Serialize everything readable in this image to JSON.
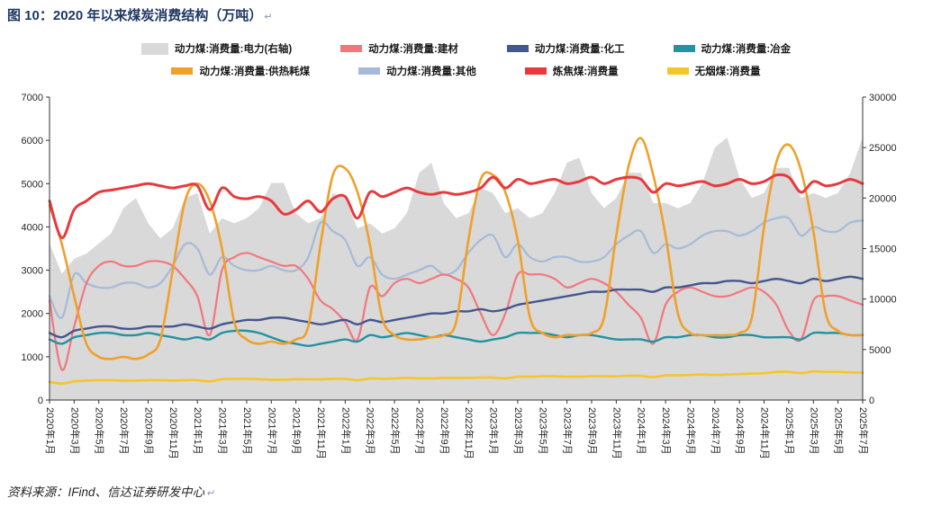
{
  "page": {
    "title": "图 10：2020 年以来煤炭消费结构（万吨）",
    "title_return_mark": "↵",
    "source_note": "资料来源：IFind、信达证券研发中心",
    "source_return_mark": "↵"
  },
  "chart_data": {
    "type": "line",
    "title": "图 10：2020 年以来煤炭消费结构（万吨）",
    "xlabel": "",
    "ylabel": "",
    "grid": false,
    "legend_position": "top",
    "n_points": 67,
    "x_label_every": 2,
    "x_tick_labels": [
      "2020年1月",
      "2020年3月",
      "2020年5月",
      "2020年7月",
      "2020年9月",
      "2020年11月",
      "2021年1月",
      "2021年3月",
      "2021年5月",
      "2021年7月",
      "2021年9月",
      "2021年11月",
      "2022年1月",
      "2022年3月",
      "2022年5月",
      "2022年7月",
      "2022年9月",
      "2022年11月",
      "2023年1月",
      "2023年3月",
      "2023年5月",
      "2023年7月",
      "2023年9月",
      "2023年11月",
      "2024年1月",
      "2024年3月",
      "2024年5月",
      "2024年7月",
      "2024年9月",
      "2024年11月",
      "2025年1月",
      "2025年3月",
      "2025年5月",
      "2025年7月"
    ],
    "axes": {
      "left": {
        "min": 0,
        "max": 7000,
        "ticks": [
          0,
          1000,
          2000,
          3000,
          4000,
          5000,
          6000,
          7000
        ]
      },
      "right": {
        "min": 0,
        "max": 30000,
        "ticks": [
          0,
          5000,
          10000,
          15000,
          20000,
          25000,
          30000
        ]
      }
    },
    "legend_rows": [
      [
        0,
        2,
        3,
        4
      ],
      [
        6,
        1,
        7,
        5
      ]
    ],
    "series": [
      {
        "key": "power",
        "name": "动力煤:消费量:电力(右轴)",
        "axis": "right",
        "type": "area",
        "color": "#d9d9d9",
        "width": 0,
        "values": [
          15500,
          12500,
          14000,
          14500,
          15500,
          16500,
          19000,
          20000,
          17500,
          16000,
          17000,
          20000,
          20500,
          16500,
          18000,
          17500,
          18000,
          19000,
          21500,
          21500,
          18500,
          17500,
          18000,
          20500,
          20000,
          17000,
          17500,
          16500,
          17000,
          18500,
          22500,
          23500,
          19500,
          18000,
          18500,
          21000,
          20500,
          18500,
          19000,
          18000,
          18500,
          20500,
          23500,
          24000,
          20500,
          19000,
          20000,
          22500,
          22500,
          19500,
          19500,
          19000,
          19500,
          21500,
          25000,
          26000,
          22000,
          20000,
          20500,
          23000,
          23000,
          20000,
          20500,
          20000,
          20500,
          22500,
          26000
        ]
      },
      {
        "key": "other",
        "name": "动力煤:消费量:其他",
        "axis": "left",
        "type": "line",
        "color": "#a6bad8",
        "width": 2.2,
        "values": [
          2400,
          1900,
          2900,
          2700,
          2600,
          2600,
          2700,
          2700,
          2600,
          2700,
          3100,
          3600,
          3500,
          2900,
          3300,
          3100,
          3000,
          3000,
          3100,
          3000,
          3000,
          3300,
          4100,
          3900,
          3700,
          3100,
          3300,
          2900,
          2800,
          2900,
          3000,
          3100,
          2900,
          3000,
          3400,
          3700,
          3800,
          3300,
          3600,
          3300,
          3200,
          3300,
          3300,
          3200,
          3200,
          3300,
          3600,
          3800,
          3900,
          3400,
          3600,
          3500,
          3600,
          3800,
          3900,
          3900,
          3800,
          3900,
          4100,
          4200,
          4200,
          3800,
          4000,
          3900,
          3900,
          4100,
          4150
        ]
      },
      {
        "key": "building-materials",
        "name": "动力煤:消费量:建材",
        "axis": "left",
        "type": "line",
        "color": "#f2777d",
        "width": 2.2,
        "values": [
          2300,
          700,
          1700,
          2700,
          3100,
          3200,
          3100,
          3100,
          3200,
          3200,
          3100,
          2800,
          2400,
          1500,
          3000,
          3300,
          3400,
          3300,
          3200,
          3100,
          3100,
          2800,
          2300,
          2100,
          1800,
          1400,
          2600,
          2400,
          2700,
          2800,
          2700,
          2800,
          2900,
          2800,
          2600,
          2000,
          1500,
          2000,
          2900,
          2900,
          2900,
          2800,
          2600,
          2700,
          2800,
          2700,
          2500,
          2200,
          1900,
          1300,
          2200,
          2500,
          2600,
          2500,
          2400,
          2400,
          2500,
          2600,
          2500,
          2200,
          1600,
          1400,
          2300,
          2400,
          2400,
          2300,
          2200
        ]
      },
      {
        "key": "chemical",
        "name": "动力煤:消费量:化工",
        "axis": "left",
        "type": "line",
        "color": "#44568e",
        "width": 2.4,
        "values": [
          1550,
          1450,
          1600,
          1650,
          1700,
          1700,
          1650,
          1650,
          1700,
          1700,
          1700,
          1750,
          1700,
          1650,
          1750,
          1800,
          1850,
          1850,
          1900,
          1900,
          1850,
          1800,
          1750,
          1800,
          1850,
          1750,
          1850,
          1800,
          1850,
          1900,
          1950,
          2000,
          2000,
          2050,
          2050,
          2100,
          2050,
          2100,
          2200,
          2250,
          2300,
          2350,
          2400,
          2450,
          2500,
          2500,
          2550,
          2550,
          2550,
          2500,
          2600,
          2600,
          2650,
          2700,
          2700,
          2750,
          2750,
          2700,
          2750,
          2800,
          2750,
          2700,
          2800,
          2750,
          2800,
          2850,
          2800
        ]
      },
      {
        "key": "metallurgy",
        "name": "动力煤:消费量:冶金",
        "axis": "left",
        "type": "line",
        "color": "#2492a0",
        "width": 2.4,
        "values": [
          1400,
          1300,
          1450,
          1500,
          1550,
          1550,
          1500,
          1500,
          1550,
          1500,
          1450,
          1400,
          1450,
          1400,
          1550,
          1600,
          1600,
          1550,
          1450,
          1350,
          1300,
          1250,
          1300,
          1350,
          1400,
          1350,
          1500,
          1450,
          1500,
          1550,
          1500,
          1450,
          1500,
          1450,
          1400,
          1350,
          1400,
          1450,
          1550,
          1550,
          1550,
          1500,
          1450,
          1500,
          1500,
          1450,
          1400,
          1400,
          1400,
          1350,
          1450,
          1450,
          1500,
          1500,
          1450,
          1450,
          1500,
          1500,
          1450,
          1450,
          1450,
          1400,
          1550,
          1550,
          1550,
          1500,
          1500
        ]
      },
      {
        "key": "anthracite",
        "name": "无烟煤:消费量",
        "axis": "left",
        "type": "line",
        "color": "#f6c52a",
        "width": 2.6,
        "values": [
          420,
          380,
          430,
          450,
          460,
          460,
          450,
          450,
          460,
          460,
          450,
          460,
          460,
          430,
          480,
          490,
          490,
          480,
          470,
          470,
          480,
          480,
          480,
          490,
          490,
          460,
          500,
          490,
          500,
          510,
          500,
          500,
          510,
          510,
          510,
          520,
          520,
          500,
          540,
          540,
          550,
          550,
          540,
          540,
          550,
          550,
          550,
          560,
          560,
          530,
          570,
          570,
          580,
          590,
          580,
          590,
          600,
          610,
          620,
          650,
          650,
          620,
          660,
          650,
          650,
          640,
          630
        ]
      },
      {
        "key": "heating",
        "name": "动力煤:消费量:供热耗煤",
        "axis": "left",
        "type": "line",
        "color": "#f0a02a",
        "width": 2.6,
        "values": [
          4500,
          3600,
          2400,
          1300,
          1000,
          950,
          1000,
          950,
          1050,
          1400,
          3000,
          4600,
          5000,
          4600,
          3500,
          1800,
          1400,
          1300,
          1350,
          1300,
          1400,
          1700,
          3600,
          5200,
          5350,
          4800,
          3600,
          1900,
          1500,
          1400,
          1400,
          1450,
          1500,
          1800,
          3700,
          5100,
          5200,
          4800,
          3700,
          1900,
          1550,
          1450,
          1500,
          1500,
          1550,
          1900,
          3800,
          5400,
          6050,
          5200,
          3800,
          2000,
          1550,
          1500,
          1500,
          1500,
          1550,
          1900,
          4000,
          5500,
          5900,
          5300,
          3900,
          2000,
          1600,
          1500,
          1500
        ]
      },
      {
        "key": "coking-coal",
        "name": "炼焦煤:消费量",
        "axis": "left",
        "type": "line",
        "color": "#e83a3e",
        "width": 3,
        "values": [
          4600,
          3750,
          4400,
          4600,
          4800,
          4850,
          4900,
          4950,
          5000,
          4950,
          4900,
          4950,
          4950,
          4400,
          4900,
          4700,
          4650,
          4700,
          4600,
          4300,
          4400,
          4600,
          4350,
          4650,
          4700,
          4200,
          4800,
          4700,
          4800,
          4900,
          4800,
          4750,
          4800,
          4750,
          4800,
          4900,
          5150,
          4900,
          5100,
          5000,
          5050,
          5100,
          5000,
          5050,
          5150,
          5000,
          5100,
          5150,
          5100,
          4800,
          5000,
          4950,
          5000,
          5050,
          4950,
          5000,
          5100,
          5000,
          5050,
          5200,
          5150,
          4800,
          5050,
          4950,
          5000,
          5100,
          5000
        ]
      }
    ]
  }
}
